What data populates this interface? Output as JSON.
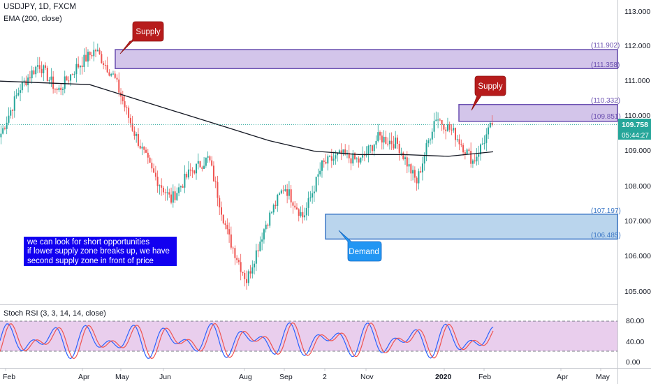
{
  "header": {
    "symbol_line": "USDJPY, 1D, FXCM",
    "indicator_line": "EMA (200, close)",
    "oscillator_line": "Stoch RSI (3, 3, 14, 14, close)"
  },
  "price_axis": {
    "ticks": [
      "113.000",
      "112.000",
      "111.000",
      "110.000",
      "109.000",
      "108.000",
      "107.000",
      "106.000",
      "105.000"
    ],
    "last_price": "109.758",
    "countdown": "05:44:27"
  },
  "oscillator_axis": {
    "ticks": [
      "80.00",
      "40.00",
      "0.00"
    ]
  },
  "time_axis": {
    "labels": [
      "Feb",
      "Apr",
      "May",
      "Jun",
      "Aug",
      "Sep",
      "2",
      "Nov",
      "2020",
      "Feb",
      "Apr",
      "May"
    ]
  },
  "zones": [
    {
      "type": "supply",
      "upper": "(111.902)",
      "lower": "(111.358)",
      "upper_value": 111.902,
      "lower_value": 111.358
    },
    {
      "type": "supply",
      "upper": "(110.332)",
      "lower": "(109.851)",
      "upper_value": 110.332,
      "lower_value": 109.851
    },
    {
      "type": "demand",
      "upper": "(107.197)",
      "lower": "(106.485)",
      "upper_value": 107.197,
      "lower_value": 106.485
    }
  ],
  "callouts": {
    "supply_1": "Supply",
    "supply_2": "Supply",
    "demand": "Demand"
  },
  "note": {
    "line1": "we can look for short opportunities",
    "line2": "if lower supply zone breaks up, we have",
    "line3": "second supply zone in front of price"
  },
  "colors": {
    "up": "#26a69a",
    "down": "#ef5350",
    "ema": "#131722",
    "supply_zone": "#9575cd",
    "demand_zone": "#5b9bd5",
    "supply_callout": "#b71c1c",
    "demand_callout": "#2196f3",
    "stoch_k": "#2962ff",
    "stoch_d": "#ef5350",
    "stoch_band": "#e1bee7"
  },
  "chart_data": {
    "type": "line",
    "price_scale": {
      "min": 104.6,
      "max": 113.0,
      "unit": "JPY"
    },
    "oscillator_scale": {
      "min": 0,
      "max": 100,
      "upper_band": 80,
      "lower_band": 20
    },
    "price_series": [
      {
        "t": "2019-02",
        "v": 109.5
      },
      {
        "t": "2019-02b",
        "v": 110.8
      },
      {
        "t": "2019-03",
        "v": 111.5
      },
      {
        "t": "2019-03b",
        "v": 110.7
      },
      {
        "t": "2019-04",
        "v": 111.4
      },
      {
        "t": "2019-04b",
        "v": 111.9
      },
      {
        "t": "2019-05",
        "v": 111.1
      },
      {
        "t": "2019-05b",
        "v": 109.6
      },
      {
        "t": "2019-06",
        "v": 108.4
      },
      {
        "t": "2019-06b",
        "v": 107.6
      },
      {
        "t": "2019-07",
        "v": 108.4
      },
      {
        "t": "2019-07b",
        "v": 108.8
      },
      {
        "t": "2019-08",
        "v": 106.6
      },
      {
        "t": "2019-08b",
        "v": 105.3
      },
      {
        "t": "2019-09",
        "v": 106.9
      },
      {
        "t": "2019-09b",
        "v": 108.0
      },
      {
        "t": "2019-10",
        "v": 107.1
      },
      {
        "t": "2019-10b",
        "v": 108.6
      },
      {
        "t": "2019-11",
        "v": 108.9
      },
      {
        "t": "2019-11b",
        "v": 108.7
      },
      {
        "t": "2019-12",
        "v": 109.4
      },
      {
        "t": "2019-12b",
        "v": 109.2
      },
      {
        "t": "2020-01",
        "v": 108.1
      },
      {
        "t": "2020-01b",
        "v": 110.0
      },
      {
        "t": "2020-01c",
        "v": 109.5
      },
      {
        "t": "2020-02",
        "v": 108.7
      },
      {
        "t": "2020-02b",
        "v": 109.758
      }
    ],
    "ema_series": [
      {
        "t": "2019-02",
        "v": 111.0
      },
      {
        "t": "2019-04",
        "v": 110.95
      },
      {
        "t": "2019-05",
        "v": 110.9
      },
      {
        "t": "2019-06",
        "v": 110.5
      },
      {
        "t": "2019-07",
        "v": 110.1
      },
      {
        "t": "2019-08",
        "v": 109.7
      },
      {
        "t": "2019-09",
        "v": 109.3
      },
      {
        "t": "2019-10",
        "v": 109.0
      },
      {
        "t": "2019-11",
        "v": 108.9
      },
      {
        "t": "2019-12",
        "v": 108.9
      },
      {
        "t": "2020-01",
        "v": 108.85
      },
      {
        "t": "2020-02",
        "v": 108.98
      }
    ]
  }
}
